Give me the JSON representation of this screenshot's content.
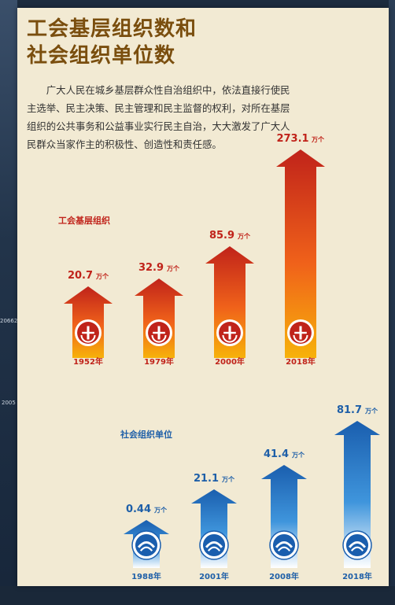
{
  "header": {
    "title_line1": "工会基层组织数和",
    "title_line2": "社会组织单位数"
  },
  "intro": "广大人民在城乡基层群众性自治组织中，依法直接行使民主选举、民主决策、民主管理和民主监督的权利，对所在基层组织的公共事务和公益事业实行民主自治，大大激发了广大人民群众当家作主的积极性、创造性和责任感。",
  "side_fragments": {
    "number_1": "20662",
    "number_2": "2005"
  },
  "colors": {
    "union_arrow_top": "#c0231a",
    "union_arrow_bottom": "#f7b20a",
    "social_arrow_top": "#1a5eae",
    "social_arrow_bottom": "#ffffff",
    "union_text": "#c0231a",
    "social_text": "#1e5fa8"
  },
  "chart_data": [
    {
      "type": "bar",
      "series": [
        {
          "name": "工会基层组织",
          "values": [
            20.7,
            32.9,
            85.9,
            273.1
          ]
        }
      ],
      "categories": [
        "1952年",
        "1979年",
        "2000年",
        "2018年"
      ],
      "unit": "万个",
      "icon": "trade-union-emblem-icon"
    },
    {
      "type": "bar",
      "series": [
        {
          "name": "社会组织单位",
          "values": [
            0.44,
            21.1,
            41.4,
            81.7
          ]
        }
      ],
      "categories": [
        "1988年",
        "2001年",
        "2008年",
        "2018年"
      ],
      "unit": "万个",
      "icon": "social-organization-emblem-icon"
    }
  ]
}
